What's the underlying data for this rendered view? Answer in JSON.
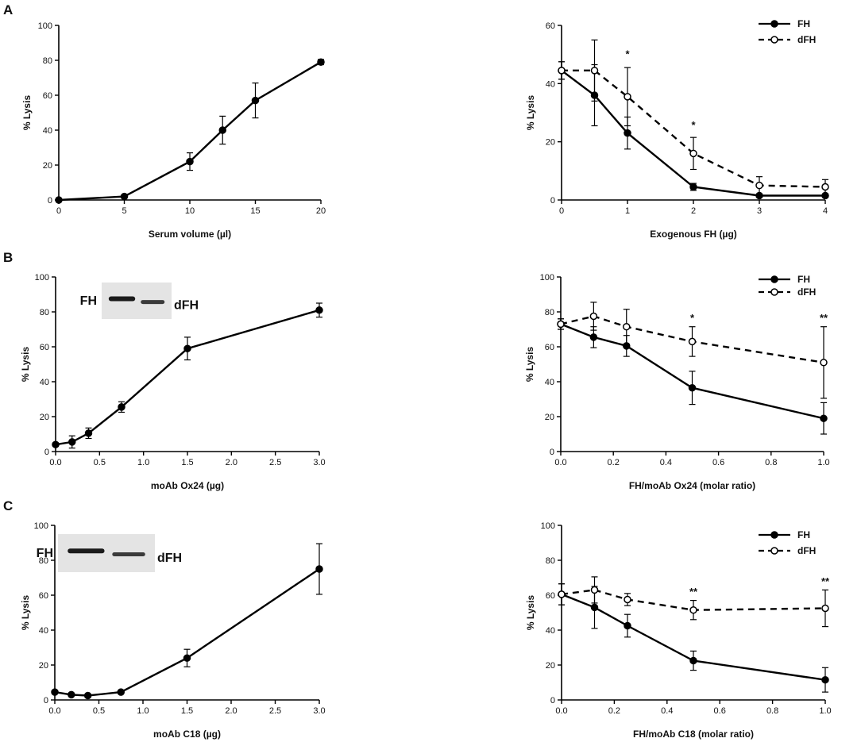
{
  "panel_letters": [
    "A",
    "B",
    "C"
  ],
  "chart_data": [
    {
      "type": "line",
      "panel": "A",
      "xlabel": "Serum volume (µl)",
      "ylabel": "% Lysis",
      "xlim": [
        0,
        20
      ],
      "ylim": [
        0,
        100
      ],
      "xticks": [
        0,
        5,
        10,
        15,
        20
      ],
      "xtick_labels": [
        "0",
        "5",
        "10",
        "15",
        "20"
      ],
      "yticks": [
        0,
        20,
        40,
        60,
        80,
        100
      ],
      "ytick_labels": [
        "0",
        "20",
        "40",
        "60",
        "80",
        "100"
      ],
      "series": [
        {
          "name": "",
          "style": "solid",
          "marker": "filled",
          "x": [
            0,
            5,
            10,
            12.5,
            15,
            20
          ],
          "y": [
            0,
            2,
            22,
            40,
            57,
            79
          ],
          "err": [
            0,
            0,
            5,
            8,
            10,
            1.5
          ]
        }
      ],
      "annotations": []
    },
    {
      "type": "line",
      "panel": "A",
      "xlabel": "Exogenous FH (µg)",
      "ylabel": "% Lysis",
      "xlim": [
        0,
        4
      ],
      "ylim": [
        0,
        60
      ],
      "xticks": [
        0,
        1,
        2,
        3,
        4
      ],
      "xtick_labels": [
        "0",
        "1",
        "2",
        "3",
        "4"
      ],
      "yticks": [
        0,
        20,
        40,
        60
      ],
      "ytick_labels": [
        "0",
        "20",
        "40",
        "60"
      ],
      "legend": [
        "FH",
        "dFH"
      ],
      "series": [
        {
          "name": "FH",
          "style": "solid",
          "marker": "filled",
          "x": [
            0,
            0.5,
            1,
            2,
            3,
            4
          ],
          "y": [
            44.5,
            36,
            23,
            4.5,
            1.5,
            1.5
          ],
          "err": [
            3,
            10.5,
            5.5,
            1.2,
            0.5,
            0.5
          ]
        },
        {
          "name": "dFH",
          "style": "dashed",
          "marker": "open",
          "x": [
            0,
            0.5,
            1,
            2,
            3,
            4
          ],
          "y": [
            44.5,
            44.5,
            35.5,
            16,
            5,
            4.5
          ],
          "err": [
            3,
            10.5,
            10,
            5.5,
            3,
            2.5
          ]
        }
      ],
      "annotations": [
        {
          "text": "*",
          "x": 1,
          "y": 49
        },
        {
          "text": "*",
          "x": 2,
          "y": 24.5
        }
      ]
    },
    {
      "type": "line",
      "panel": "B",
      "xlabel": "moAb Ox24 (µg)",
      "ylabel": "% Lysis",
      "xlim": [
        0,
        3
      ],
      "ylim": [
        0,
        100
      ],
      "xticks": [
        0,
        0.5,
        1,
        1.5,
        2,
        2.5,
        3
      ],
      "xtick_labels": [
        "0.0",
        "0.5",
        "1.0",
        "1.5",
        "2.0",
        "2.5",
        "3.0"
      ],
      "yticks": [
        0,
        20,
        40,
        60,
        80,
        100
      ],
      "ytick_labels": [
        "0",
        "20",
        "40",
        "60",
        "80",
        "100"
      ],
      "series": [
        {
          "name": "",
          "style": "solid",
          "marker": "filled",
          "x": [
            0,
            0.1875,
            0.375,
            0.75,
            1.5,
            3
          ],
          "y": [
            4,
            5.5,
            10.5,
            25.5,
            59,
            81
          ],
          "err": [
            1,
            3.5,
            3,
            3,
            6.5,
            4
          ]
        }
      ],
      "annotations": [],
      "inset": {
        "label_left": "FH",
        "label_right": "dFH"
      }
    },
    {
      "type": "line",
      "panel": "B",
      "xlabel": "FH/moAb Ox24 (molar ratio)",
      "ylabel": "% Lysis",
      "xlim": [
        0,
        1
      ],
      "ylim": [
        0,
        100
      ],
      "xticks": [
        0,
        0.2,
        0.4,
        0.6,
        0.8,
        1
      ],
      "xtick_labels": [
        "0.0",
        "0.2",
        "0.4",
        "0.6",
        "0.8",
        "1.0"
      ],
      "yticks": [
        0,
        20,
        40,
        60,
        80,
        100
      ],
      "ytick_labels": [
        "0",
        "20",
        "40",
        "60",
        "80",
        "100"
      ],
      "legend": [
        "FH",
        "dFH"
      ],
      "series": [
        {
          "name": "FH",
          "style": "solid",
          "marker": "filled",
          "x": [
            0,
            0.125,
            0.25,
            0.5,
            1
          ],
          "y": [
            73,
            65.5,
            60.5,
            36.5,
            19
          ],
          "err": [
            3,
            6,
            6,
            9.5,
            9
          ]
        },
        {
          "name": "dFH",
          "style": "dashed",
          "marker": "open",
          "x": [
            0,
            0.125,
            0.25,
            0.5,
            1
          ],
          "y": [
            73,
            77.5,
            71.5,
            63,
            51
          ],
          "err": [
            3,
            8,
            10,
            8.5,
            20.5
          ]
        }
      ],
      "annotations": [
        {
          "text": "*",
          "x": 0.5,
          "y": 74.5
        },
        {
          "text": "**",
          "x": 1,
          "y": 74.5
        }
      ]
    },
    {
      "type": "line",
      "panel": "C",
      "xlabel": "moAb C18 (µg)",
      "ylabel": "% Lysis",
      "xlim": [
        0,
        3
      ],
      "ylim": [
        0,
        100
      ],
      "xticks": [
        0,
        0.5,
        1,
        1.5,
        2,
        2.5,
        3
      ],
      "xtick_labels": [
        "0.0",
        "0.5",
        "1.0",
        "1.5",
        "2.0",
        "2.5",
        "3.0"
      ],
      "yticks": [
        0,
        20,
        40,
        60,
        80,
        100
      ],
      "ytick_labels": [
        "0",
        "20",
        "40",
        "60",
        "80",
        "100"
      ],
      "series": [
        {
          "name": "",
          "style": "solid",
          "marker": "filled",
          "x": [
            0,
            0.1875,
            0.375,
            0.75,
            1.5,
            3
          ],
          "y": [
            4.5,
            3,
            2.5,
            4.5,
            24,
            75
          ],
          "err": [
            0.5,
            0.5,
            0.5,
            0.5,
            5,
            14.5
          ]
        }
      ],
      "annotations": [],
      "inset": {
        "label_left": "FH",
        "label_right": "dFH"
      }
    },
    {
      "type": "line",
      "panel": "C",
      "xlabel": "FH/moAb C18 (molar ratio)",
      "ylabel": "% Lysis",
      "xlim": [
        0,
        1
      ],
      "ylim": [
        0,
        100
      ],
      "xticks": [
        0,
        0.2,
        0.4,
        0.6,
        0.8,
        1
      ],
      "xtick_labels": [
        "0.0",
        "0.2",
        "0.4",
        "0.6",
        "0.8",
        "1.0"
      ],
      "yticks": [
        0,
        20,
        40,
        60,
        80,
        100
      ],
      "ytick_labels": [
        "0",
        "20",
        "40",
        "60",
        "80",
        "100"
      ],
      "legend": [
        "FH",
        "dFH"
      ],
      "series": [
        {
          "name": "FH",
          "style": "solid",
          "marker": "filled",
          "x": [
            0,
            0.125,
            0.25,
            0.5,
            1
          ],
          "y": [
            60.5,
            53,
            42.5,
            22.5,
            11.5
          ],
          "err": [
            6,
            12,
            6.5,
            5.5,
            7
          ]
        },
        {
          "name": "dFH",
          "style": "dashed",
          "marker": "open",
          "x": [
            0,
            0.125,
            0.25,
            0.5,
            1
          ],
          "y": [
            60.5,
            63,
            57.5,
            51.5,
            52.5
          ],
          "err": [
            6,
            7.5,
            3.5,
            5.5,
            10.5
          ]
        }
      ],
      "annotations": [
        {
          "text": "**",
          "x": 0.5,
          "y": 60
        },
        {
          "text": "**",
          "x": 1,
          "y": 66
        }
      ]
    }
  ]
}
